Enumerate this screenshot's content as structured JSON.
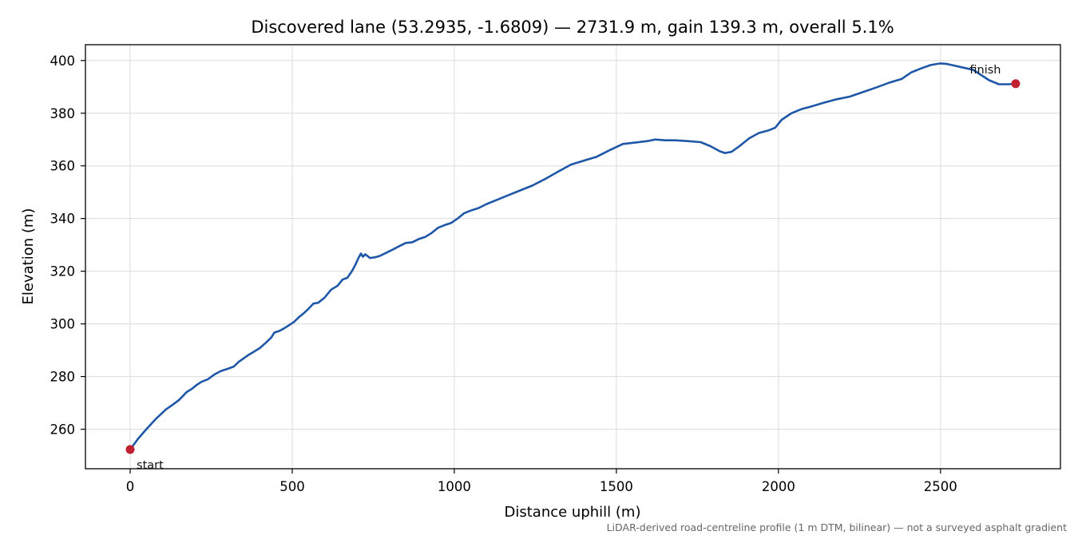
{
  "chart_data": {
    "type": "line",
    "title": "Discovered lane (53.2935, -1.6809) — 2731.9 m, gain 139.3 m, overall 5.1%",
    "xlabel": "Distance uphill (m)",
    "ylabel": "Elevation (m)",
    "xlim": [
      -138,
      2870
    ],
    "ylim": [
      245,
      406
    ],
    "x_ticks": [
      0,
      500,
      1000,
      1500,
      2000,
      2500
    ],
    "y_ticks": [
      260,
      280,
      300,
      320,
      340,
      360,
      380,
      400
    ],
    "grid": true,
    "line_color": "#1f57a8",
    "marker_color": "#c0202f",
    "series": [
      {
        "x": [
          0,
          25,
          50,
          80,
          110,
          130,
          150,
          175,
          190,
          205,
          220,
          240,
          260,
          280,
          300,
          320,
          335,
          350,
          365,
          380,
          400,
          420,
          435,
          445,
          460,
          475,
          490,
          505,
          520,
          535,
          550,
          565,
          580,
          600,
          620,
          640,
          655,
          670,
          685,
          695,
          705,
          712,
          718,
          725,
          730,
          740,
          755,
          770,
          790,
          810,
          830,
          850,
          870,
          890,
          910,
          930,
          950,
          970,
          990,
          1010,
          1030,
          1050,
          1075,
          1100,
          1130,
          1160,
          1200,
          1240,
          1280,
          1320,
          1360,
          1400,
          1440,
          1480,
          1520,
          1560,
          1600,
          1620,
          1650,
          1680,
          1720,
          1760,
          1790,
          1820,
          1835,
          1855,
          1880,
          1910,
          1940,
          1970,
          1990,
          2010,
          2040,
          2070,
          2100,
          2140,
          2180,
          2220,
          2260,
          2300,
          2340,
          2380,
          2410,
          2440,
          2470,
          2500,
          2520,
          2545,
          2570,
          2600,
          2625,
          2650,
          2680,
          2710,
          2731.9
        ],
        "y": [
          252.3,
          256.5,
          260.0,
          264.0,
          267.5,
          269.2,
          271.0,
          274.2,
          275.3,
          276.8,
          278.0,
          279.0,
          280.8,
          282.1,
          282.9,
          283.8,
          285.6,
          286.9,
          288.2,
          289.3,
          290.8,
          293.0,
          294.8,
          296.7,
          297.3,
          298.3,
          299.5,
          300.7,
          302.5,
          304.0,
          305.7,
          307.7,
          308.0,
          310.0,
          313.0,
          314.5,
          316.8,
          317.5,
          320.2,
          322.5,
          325.2,
          326.7,
          325.5,
          326.4,
          326.0,
          325.0,
          325.3,
          325.8,
          327.0,
          328.2,
          329.5,
          330.7,
          331.0,
          332.2,
          333.0,
          334.5,
          336.5,
          337.5,
          338.3,
          340.0,
          342.0,
          343.0,
          344.0,
          345.5,
          347.0,
          348.5,
          350.5,
          352.5,
          355.0,
          357.8,
          360.5,
          362.0,
          363.5,
          366.0,
          368.3,
          368.9,
          369.5,
          370.0,
          369.7,
          369.7,
          369.4,
          369.0,
          367.5,
          365.5,
          364.9,
          365.3,
          367.5,
          370.5,
          372.5,
          373.5,
          374.5,
          377.5,
          380.0,
          381.5,
          382.5,
          384.0,
          385.3,
          386.3,
          388.0,
          389.7,
          391.5,
          393.0,
          395.5,
          397.0,
          398.3,
          398.9,
          398.7,
          398.0,
          397.3,
          396.5,
          394.5,
          392.5,
          391.0,
          391.0,
          391.2
        ]
      }
    ],
    "annotations": [
      {
        "text": "start",
        "x": 0,
        "y": 252.3
      },
      {
        "text": "finish",
        "x": 2731.9,
        "y": 391.2
      }
    ],
    "footnote": "LiDAR-derived road-centreline profile (1 m DTM, bilinear) — not a surveyed asphalt gradient"
  }
}
